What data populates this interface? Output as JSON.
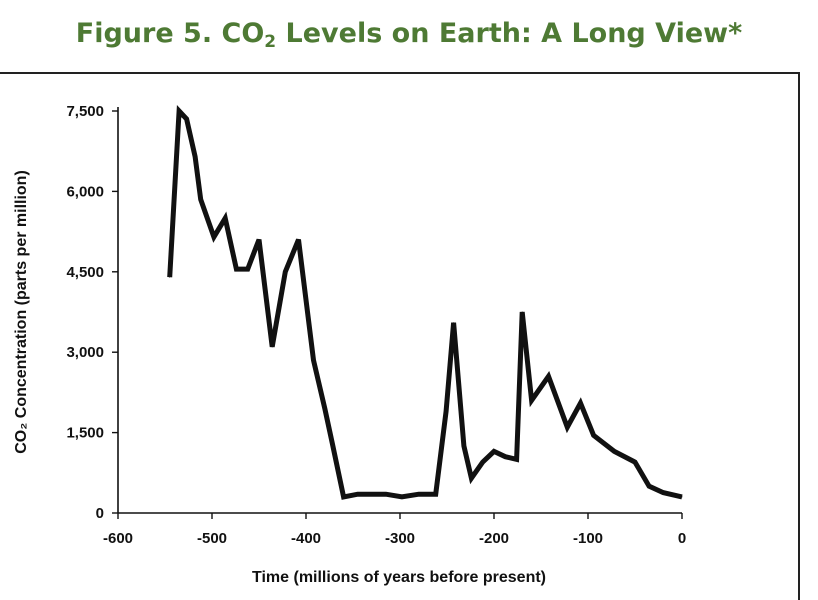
{
  "figure": {
    "title_before": "Figure 5. CO",
    "title_sub": "2",
    "title_after": " Levels on Earth: A Long View*",
    "title_color": "#4e7a34"
  },
  "chart_data": {
    "type": "line",
    "title": "Figure 5. CO2 Levels on Earth: A Long View*",
    "xlabel": "Time (millions of years before present)",
    "ylabel": "CO₂ Concentration (parts per million)",
    "xlim": [
      -600,
      0
    ],
    "ylim": [
      0,
      7500
    ],
    "xticks": [
      -600,
      -500,
      -400,
      -300,
      -200,
      -100,
      0
    ],
    "xtick_labels": [
      "-600",
      "-500",
      "-400",
      "-300",
      "-200",
      "-100",
      "0"
    ],
    "yticks": [
      0,
      1500,
      3000,
      4500,
      6000,
      7500
    ],
    "ytick_labels": [
      "0",
      "1,500",
      "3,000",
      "4,500",
      "6,000",
      "7,500"
    ],
    "grid": false,
    "series": [
      {
        "color": "#111111",
        "x": [
          -545,
          -535,
          -527,
          -518,
          -512,
          -498,
          -486,
          -474,
          -462,
          -450,
          -436,
          -422,
          -408,
          -392,
          -380,
          -372,
          -360,
          -345,
          -333,
          -315,
          -298,
          -280,
          -262,
          -251,
          -243,
          -232,
          -224,
          -212,
          -200,
          -188,
          -176,
          -170,
          -160,
          -142,
          -122,
          -108,
          -94,
          -72,
          -50,
          -35,
          -20,
          0
        ],
        "values": [
          4400,
          7500,
          7350,
          6650,
          5850,
          5150,
          5500,
          4550,
          4550,
          5100,
          3100,
          4500,
          5100,
          2850,
          1950,
          1300,
          300,
          350,
          350,
          350,
          300,
          350,
          350,
          1900,
          3550,
          1250,
          650,
          950,
          1150,
          1050,
          1000,
          3750,
          2100,
          2550,
          1600,
          2050,
          1450,
          1150,
          950,
          500,
          380,
          300
        ]
      }
    ]
  }
}
